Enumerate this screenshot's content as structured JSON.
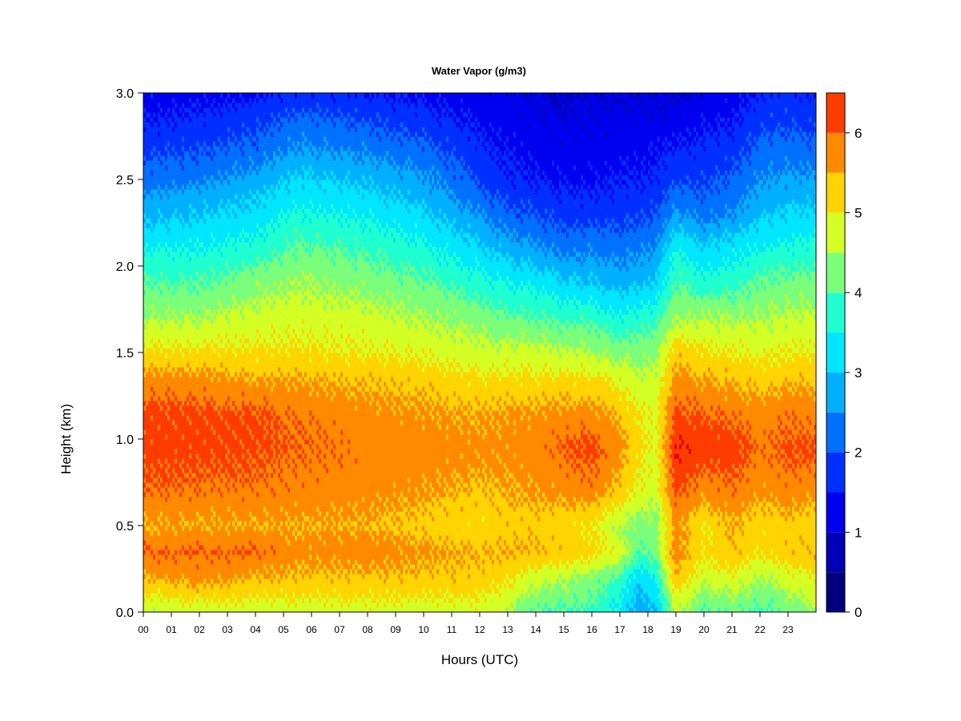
{
  "chart_data": {
    "type": "heatmap",
    "title": "Water Vapor (g/m3)",
    "xlabel": "Hours (UTC)",
    "ylabel": "Height (km)",
    "xlim": [
      0,
      24
    ],
    "ylim": [
      0.0,
      3.0
    ],
    "x_ticks": [
      "00",
      "01",
      "02",
      "03",
      "04",
      "05",
      "06",
      "07",
      "08",
      "09",
      "10",
      "11",
      "12",
      "13",
      "14",
      "15",
      "16",
      "17",
      "18",
      "19",
      "20",
      "21",
      "22",
      "23"
    ],
    "y_ticks": [
      "0.0",
      "0.5",
      "1.0",
      "1.5",
      "2.0",
      "2.5",
      "3.0"
    ],
    "colorbar": {
      "levels": [
        0,
        0.5,
        1,
        1.5,
        2,
        2.5,
        3,
        3.5,
        4,
        4.5,
        5,
        5.5,
        6,
        6.5
      ],
      "colors": [
        "#00007f",
        "#0000b8",
        "#0000f0",
        "#0030ff",
        "#0070ff",
        "#00b0ff",
        "#00e6ff",
        "#20ffd0",
        "#7bff7b",
        "#d4ff24",
        "#ffd400",
        "#ff8a00",
        "#ff3c00",
        "#e00000",
        "#800000"
      ],
      "tick_labels": [
        "0",
        "1",
        "2",
        "3",
        "4",
        "5",
        "6"
      ]
    },
    "heights_km": [
      0.0,
      0.2,
      0.35,
      0.5,
      0.7,
      0.95,
      1.15,
      1.35,
      1.5,
      1.7,
      1.9,
      2.1,
      2.3,
      2.5,
      2.7,
      2.9,
      3.0
    ],
    "hours": [
      0,
      2,
      4,
      5.5,
      8,
      10,
      12,
      13,
      14,
      15,
      16,
      17,
      17.7,
      18.3,
      19,
      20,
      21,
      22,
      23,
      23.9
    ],
    "columns": [
      [
        4.0,
        5.0,
        5.5,
        5.0,
        5.5,
        5.7,
        5.7,
        5.2,
        4.6,
        4.0,
        3.5,
        3.0,
        2.3,
        1.8,
        1.3,
        0.9,
        0.8
      ],
      [
        4.2,
        5.2,
        5.5,
        5.0,
        5.4,
        5.7,
        5.6,
        5.2,
        4.6,
        4.0,
        3.5,
        3.0,
        2.5,
        1.9,
        1.4,
        1.0,
        0.8
      ],
      [
        4.2,
        5.0,
        5.5,
        5.0,
        5.4,
        5.6,
        5.6,
        5.0,
        4.6,
        4.2,
        3.8,
        3.2,
        2.7,
        2.2,
        1.6,
        1.2,
        0.9
      ],
      [
        4.2,
        4.9,
        5.2,
        5.0,
        5.3,
        5.5,
        5.4,
        5.0,
        4.6,
        4.3,
        4.0,
        3.6,
        3.1,
        2.6,
        2.0,
        1.5,
        1.1
      ],
      [
        4.3,
        4.9,
        5.3,
        5.0,
        5.2,
        5.3,
        5.2,
        4.9,
        4.5,
        4.2,
        3.8,
        3.4,
        2.9,
        2.4,
        1.8,
        1.3,
        1.0
      ],
      [
        4.2,
        4.9,
        5.1,
        4.8,
        5.1,
        5.3,
        5.1,
        4.8,
        4.4,
        4.0,
        3.6,
        3.1,
        2.6,
        2.1,
        1.6,
        1.1,
        0.9
      ],
      [
        4.3,
        4.8,
        5.0,
        4.6,
        4.9,
        5.2,
        5.0,
        4.6,
        4.2,
        3.8,
        3.2,
        2.6,
        2.0,
        1.4,
        1.1,
        0.8,
        0.7
      ],
      [
        4.0,
        4.6,
        5.0,
        4.8,
        5.0,
        5.2,
        5.1,
        4.6,
        4.2,
        3.6,
        3.0,
        2.3,
        1.6,
        1.1,
        0.9,
        0.7,
        0.6
      ],
      [
        3.5,
        4.2,
        5.0,
        4.8,
        5.1,
        5.3,
        5.1,
        4.6,
        4.2,
        3.5,
        2.9,
        2.1,
        1.5,
        1.0,
        0.8,
        0.6,
        0.5
      ],
      [
        3.4,
        4.1,
        4.8,
        4.7,
        5.2,
        5.5,
        5.2,
        4.6,
        4.1,
        3.4,
        2.6,
        1.8,
        1.3,
        0.9,
        0.7,
        0.5,
        0.4
      ],
      [
        3.4,
        3.8,
        4.7,
        4.5,
        5.3,
        5.7,
        5.2,
        4.6,
        4.0,
        3.4,
        2.5,
        1.9,
        1.3,
        0.9,
        0.7,
        0.6,
        0.5
      ],
      [
        2.8,
        3.4,
        4.3,
        4.0,
        4.8,
        5.2,
        4.9,
        4.4,
        3.8,
        3.0,
        2.3,
        1.8,
        1.3,
        1.0,
        0.8,
        0.6,
        0.5
      ],
      [
        2.1,
        2.6,
        3.5,
        3.8,
        4.4,
        4.6,
        4.5,
        4.1,
        3.8,
        3.2,
        2.4,
        1.9,
        1.4,
        1.0,
        0.8,
        0.6,
        0.5
      ],
      [
        2.4,
        3.0,
        3.8,
        3.8,
        4.2,
        4.4,
        4.4,
        4.2,
        3.9,
        3.3,
        2.6,
        2.0,
        1.5,
        1.1,
        0.9,
        0.6,
        0.5
      ],
      [
        4.0,
        4.9,
        5.3,
        5.2,
        5.6,
        6.0,
        5.6,
        5.2,
        4.8,
        4.0,
        3.5,
        3.0,
        2.1,
        1.4,
        1.0,
        0.6,
        0.5
      ],
      [
        3.5,
        4.2,
        4.6,
        4.5,
        5.2,
        5.8,
        5.5,
        5.0,
        4.6,
        4.0,
        3.2,
        2.6,
        1.8,
        1.4,
        1.1,
        0.8,
        0.6
      ],
      [
        3.6,
        4.4,
        4.9,
        5.0,
        5.4,
        5.8,
        5.4,
        4.9,
        4.5,
        4.0,
        3.3,
        2.8,
        2.0,
        1.6,
        1.2,
        0.9,
        0.8
      ],
      [
        3.4,
        4.0,
        4.6,
        4.7,
        5.1,
        5.4,
        5.2,
        4.8,
        4.4,
        4.0,
        3.6,
        3.0,
        2.4,
        2.0,
        1.6,
        1.2,
        1.0
      ],
      [
        3.6,
        4.3,
        4.8,
        4.8,
        5.3,
        5.6,
        5.4,
        4.9,
        4.5,
        4.1,
        3.7,
        3.1,
        2.6,
        2.1,
        1.7,
        1.3,
        1.1
      ],
      [
        4.0,
        4.4,
        5.0,
        4.7,
        5.2,
        5.6,
        5.3,
        4.9,
        4.5,
        4.1,
        3.7,
        3.2,
        2.6,
        2.1,
        1.6,
        1.2,
        1.0
      ]
    ]
  }
}
